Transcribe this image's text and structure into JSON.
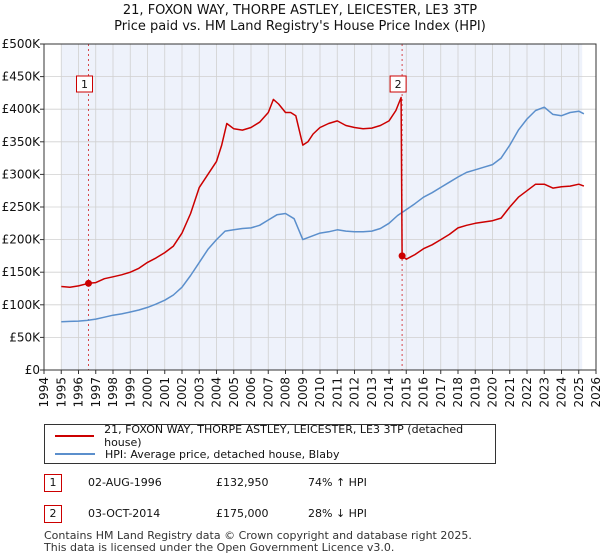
{
  "title_line1": "21, FOXON WAY, THORPE ASTLEY, LEICESTER, LE3 3TP",
  "title_line2": "Price paid vs. HM Land Registry's House Price Index (HPI)",
  "colors": {
    "property": "#cc0000",
    "hpi": "#5b8fcc",
    "shade": "#eef2fb",
    "grid": "#d0d0d0"
  },
  "chart_data": {
    "type": "line",
    "title": "21, FOXON WAY, THORPE ASTLEY, LEICESTER, LE3 3TP — Price paid vs. HM Land Registry's House Price Index (HPI)",
    "xlim": [
      1994,
      2026
    ],
    "ylim": [
      0,
      500000
    ],
    "x_ticks": [
      1994,
      1995,
      1996,
      1997,
      1998,
      1999,
      2000,
      2001,
      2002,
      2003,
      2004,
      2005,
      2006,
      2007,
      2008,
      2009,
      2010,
      2011,
      2012,
      2013,
      2014,
      2015,
      2016,
      2017,
      2018,
      2019,
      2020,
      2021,
      2022,
      2023,
      2024,
      2025,
      2026
    ],
    "y_ticks": [
      0,
      50000,
      100000,
      150000,
      200000,
      250000,
      300000,
      350000,
      400000,
      450000,
      500000
    ],
    "y_tick_labels": [
      "£0",
      "£50K",
      "£100K",
      "£150K",
      "£200K",
      "£250K",
      "£300K",
      "£350K",
      "£400K",
      "£450K",
      "£500K"
    ],
    "shaded_range": [
      1995.0,
      2025.2
    ],
    "series": [
      {
        "name": "21, FOXON WAY, THORPE ASTLEY, LEICESTER, LE3 3TP (detached house)",
        "color": "#cc0000",
        "x": [
          1995.0,
          1995.5,
          1996.0,
          1996.58,
          1997.0,
          1997.5,
          1998.0,
          1998.5,
          1999.0,
          1999.5,
          2000.0,
          2000.5,
          2001.0,
          2001.5,
          2002.0,
          2002.5,
          2003.0,
          2003.5,
          2004.0,
          2004.3,
          2004.6,
          2005.0,
          2005.5,
          2006.0,
          2006.5,
          2007.0,
          2007.3,
          2007.6,
          2008.0,
          2008.3,
          2008.6,
          2009.0,
          2009.3,
          2009.6,
          2010.0,
          2010.5,
          2011.0,
          2011.5,
          2012.0,
          2012.5,
          2013.0,
          2013.5,
          2014.0,
          2014.4,
          2014.7,
          2014.76,
          2015.0,
          2015.5,
          2016.0,
          2016.5,
          2017.0,
          2017.5,
          2018.0,
          2018.5,
          2019.0,
          2019.5,
          2020.0,
          2020.5,
          2021.0,
          2021.5,
          2022.0,
          2022.5,
          2023.0,
          2023.5,
          2024.0,
          2024.5,
          2025.0,
          2025.3
        ],
        "values": [
          128000,
          127000,
          129000,
          132950,
          134000,
          140000,
          143000,
          146000,
          150000,
          156000,
          165000,
          172000,
          180000,
          190000,
          210000,
          240000,
          280000,
          300000,
          320000,
          345000,
          378000,
          370000,
          368000,
          372000,
          380000,
          395000,
          415000,
          408000,
          395000,
          395000,
          390000,
          345000,
          350000,
          362000,
          372000,
          378000,
          382000,
          375000,
          372000,
          370000,
          371000,
          375000,
          382000,
          398000,
          418000,
          175000,
          170000,
          177000,
          186000,
          192000,
          200000,
          208000,
          218000,
          222000,
          225000,
          227000,
          229000,
          233000,
          250000,
          265000,
          275000,
          285000,
          285000,
          279000,
          281000,
          282000,
          285000,
          282000
        ]
      },
      {
        "name": "HPI: Average price, detached house, Blaby",
        "color": "#5b8fcc",
        "x": [
          1995.0,
          1995.5,
          1996.0,
          1996.5,
          1997.0,
          1997.5,
          1998.0,
          1998.5,
          1999.0,
          1999.5,
          2000.0,
          2000.5,
          2001.0,
          2001.5,
          2002.0,
          2002.5,
          2003.0,
          2003.5,
          2004.0,
          2004.5,
          2005.0,
          2005.5,
          2006.0,
          2006.5,
          2007.0,
          2007.5,
          2008.0,
          2008.5,
          2009.0,
          2009.5,
          2010.0,
          2010.5,
          2011.0,
          2011.5,
          2012.0,
          2012.5,
          2013.0,
          2013.5,
          2014.0,
          2014.5,
          2015.0,
          2015.5,
          2016.0,
          2016.5,
          2017.0,
          2017.5,
          2018.0,
          2018.5,
          2019.0,
          2019.5,
          2020.0,
          2020.5,
          2021.0,
          2021.5,
          2022.0,
          2022.5,
          2023.0,
          2023.5,
          2024.0,
          2024.5,
          2025.0,
          2025.3
        ],
        "values": [
          74000,
          74500,
          75000,
          76000,
          78000,
          81000,
          84000,
          86000,
          89000,
          92000,
          96000,
          101000,
          107000,
          115000,
          127000,
          145000,
          165000,
          185000,
          200000,
          213000,
          215000,
          217000,
          218000,
          222000,
          230000,
          238000,
          240000,
          232000,
          200000,
          205000,
          210000,
          212000,
          215000,
          213000,
          212000,
          212000,
          213000,
          217000,
          225000,
          237000,
          246000,
          255000,
          265000,
          272000,
          280000,
          288000,
          296000,
          303000,
          307000,
          311000,
          315000,
          325000,
          345000,
          368000,
          385000,
          398000,
          403000,
          392000,
          390000,
          395000,
          397000,
          393000
        ]
      }
    ],
    "annotations": [
      {
        "label": "1",
        "x": 1996.58,
        "value": 132950
      },
      {
        "label": "2",
        "x": 2014.76,
        "value": 175000
      }
    ]
  },
  "legend": {
    "property_label": "21, FOXON WAY, THORPE ASTLEY, LEICESTER, LE3 3TP (detached house)",
    "hpi_label": "HPI: Average price, detached house, Blaby"
  },
  "transactions": [
    {
      "num": "1",
      "date": "02-AUG-1996",
      "price": "£132,950",
      "hpi": "74% ↑ HPI"
    },
    {
      "num": "2",
      "date": "03-OCT-2014",
      "price": "£175,000",
      "hpi": "28% ↓ HPI"
    }
  ],
  "footer_line1": "Contains HM Land Registry data © Crown copyright and database right 2025.",
  "footer_line2": "This data is licensed under the Open Government Licence v3.0."
}
